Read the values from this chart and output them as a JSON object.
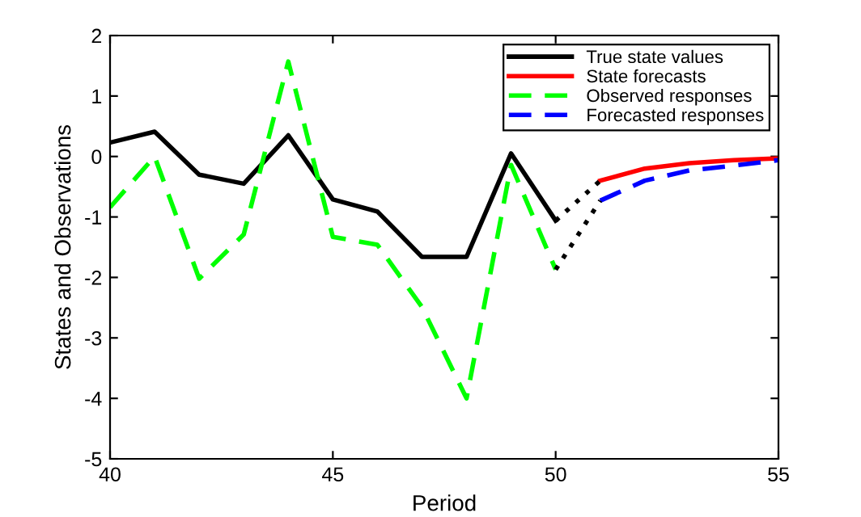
{
  "chart_data": {
    "type": "line",
    "xlabel": "Period",
    "ylabel": "States and Observations",
    "xlim": [
      40,
      55
    ],
    "xticks": [
      40,
      45,
      50,
      55
    ],
    "ylim": [
      -5,
      2
    ],
    "yticks": [
      -5,
      -4,
      -3,
      -2,
      -1,
      0,
      1,
      2
    ],
    "grid": false,
    "legend": "top right",
    "marker": "none",
    "series": [
      {
        "name": "True state values",
        "color": "#000000",
        "line_style": "solid",
        "x": [
          40,
          41,
          42,
          43,
          44,
          45,
          46,
          47,
          48,
          49,
          50
        ],
        "values": [
          0.23,
          0.41,
          -0.3,
          -0.45,
          0.35,
          -0.71,
          -0.91,
          -1.66,
          -1.66,
          0.05,
          -1.06
        ]
      },
      {
        "name": "State forecasts",
        "color": "#ff0000",
        "line_style": "solid",
        "x": [
          51,
          52,
          53,
          54,
          55
        ],
        "values": [
          -0.4,
          -0.2,
          -0.11,
          -0.06,
          -0.03
        ]
      },
      {
        "name": "Observed responses",
        "color": "#00ff00",
        "line_style": "dashed",
        "x": [
          40,
          41,
          42,
          43,
          44,
          45,
          46,
          47,
          48,
          49,
          50
        ],
        "values": [
          -0.84,
          0.0,
          -2.02,
          -1.29,
          1.57,
          -1.33,
          -1.46,
          -2.49,
          -4.0,
          -0.14,
          -1.87
        ]
      },
      {
        "name": "Forecasted responses",
        "color": "#0000ff",
        "line_style": "dashed",
        "x": [
          51,
          52,
          53,
          54,
          55
        ],
        "values": [
          -0.73,
          -0.4,
          -0.23,
          -0.15,
          -0.06
        ]
      },
      {
        "color": "#000000",
        "line_style": "dotted",
        "x": [
          50,
          51
        ],
        "values": [
          -1.06,
          -0.4
        ]
      },
      {
        "color": "#000000",
        "line_style": "dotted",
        "x": [
          50,
          51
        ],
        "values": [
          -1.87,
          -0.73
        ]
      }
    ]
  }
}
